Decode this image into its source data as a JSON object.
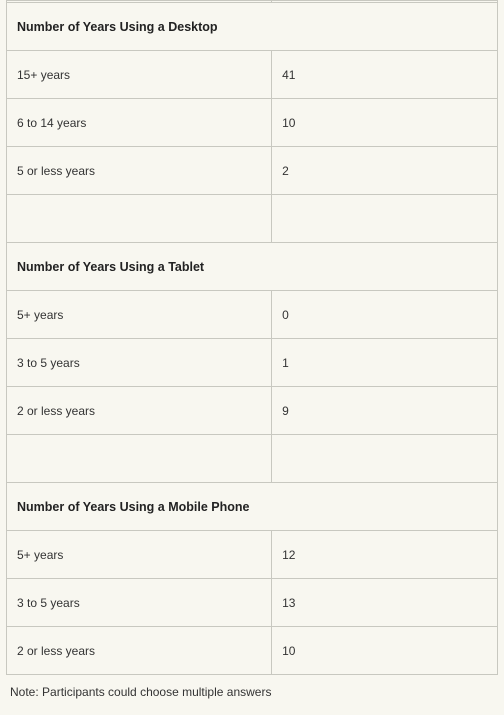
{
  "table": {
    "columns": [
      "label",
      "count"
    ],
    "column_widths_pct": [
      54,
      46
    ],
    "background_color": "#f8f7f0",
    "border_color": "#c8c8c0",
    "text_color": "#333333",
    "header_font_weight": "bold",
    "font_family": "Verdana",
    "cell_font_size_pt": 9,
    "sections": [
      {
        "header": "Number of Years Using a Desktop",
        "rows": [
          {
            "label": "15+ years",
            "count": "41"
          },
          {
            "label": "6 to 14 years",
            "count": "10"
          },
          {
            "label": "5 or less years",
            "count": "2"
          },
          {
            "label": "",
            "count": ""
          }
        ]
      },
      {
        "header": "Number of Years Using a Tablet",
        "rows": [
          {
            "label": "5+ years",
            "count": "0"
          },
          {
            "label": "3 to 5 years",
            "count": "1"
          },
          {
            "label": "2 or less years",
            "count": "9"
          },
          {
            "label": "",
            "count": ""
          }
        ]
      },
      {
        "header": "Number of Years Using a Mobile Phone",
        "rows": [
          {
            "label": "5+ years",
            "count": "12"
          },
          {
            "label": "3 to 5 years",
            "count": "13"
          },
          {
            "label": "2 or less years",
            "count": "10"
          }
        ]
      }
    ]
  },
  "note": "Note: Participants could choose multiple answers"
}
